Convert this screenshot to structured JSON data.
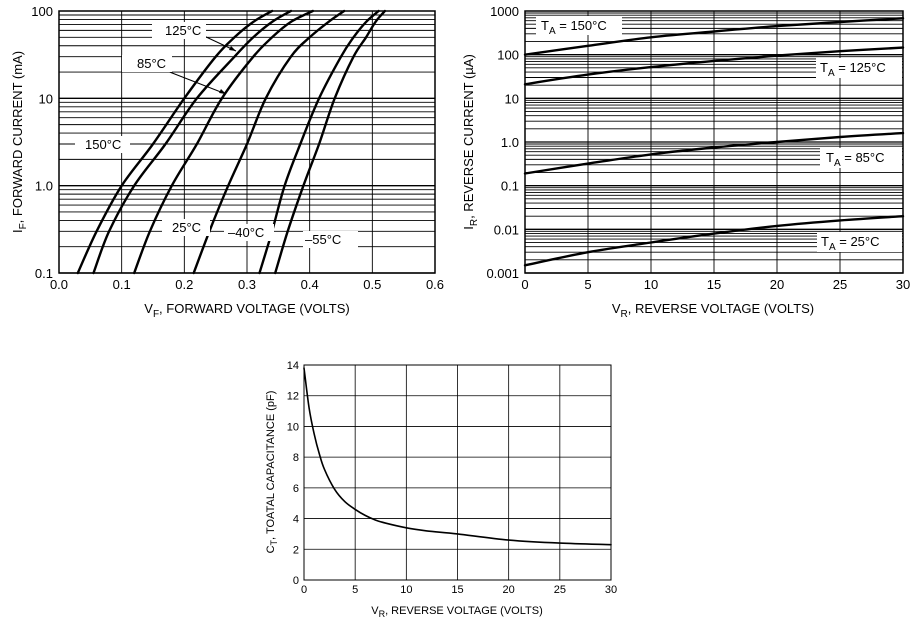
{
  "chart_data": [
    {
      "type": "line",
      "id": "forward",
      "xlabel": "V_F, FORWARD VOLTAGE (VOLTS)",
      "xlabel_main": "V",
      "xlabel_sub": "F",
      "xlabel_rest": ", FORWARD VOLTAGE (VOLTS)",
      "ylabel": "I_F, FORWARD CURRENT (mA)",
      "ylabel_main": "I",
      "ylabel_sub": "F",
      "ylabel_rest": ", FORWARD CURRENT (mA)",
      "xlim": [
        0,
        0.6
      ],
      "ylim": [
        0.1,
        100
      ],
      "y_scale": "log",
      "grid": true,
      "x_ticks": [
        "0.0",
        "0.1",
        "0.2",
        "0.3",
        "0.4",
        "0.5",
        "0.6"
      ],
      "y_ticks": [
        "0.1",
        "1.0",
        "10",
        "100"
      ],
      "series": [
        {
          "name": "150°C",
          "x": [
            0.03,
            0.06,
            0.1,
            0.15,
            0.2,
            0.25,
            0.28,
            0.31,
            0.34
          ],
          "y": [
            0.1,
            0.3,
            1,
            3,
            10,
            30,
            50,
            75,
            100
          ]
        },
        {
          "name": "125°C",
          "x": [
            0.055,
            0.08,
            0.12,
            0.17,
            0.22,
            0.28,
            0.31,
            0.34,
            0.37
          ],
          "y": [
            0.1,
            0.3,
            1,
            3,
            10,
            30,
            50,
            75,
            100
          ]
        },
        {
          "name": "85°C",
          "x": [
            0.12,
            0.145,
            0.18,
            0.22,
            0.26,
            0.31,
            0.34,
            0.37,
            0.405
          ],
          "y": [
            0.1,
            0.3,
            1,
            3,
            10,
            30,
            50,
            75,
            100
          ]
        },
        {
          "name": "25°C",
          "x": [
            0.215,
            0.24,
            0.27,
            0.3,
            0.33,
            0.37,
            0.4,
            0.43,
            0.455
          ],
          "y": [
            0.1,
            0.3,
            1,
            3,
            10,
            30,
            50,
            75,
            100
          ]
        },
        {
          "name": "-40°C",
          "x": [
            0.32,
            0.34,
            0.36,
            0.385,
            0.415,
            0.45,
            0.47,
            0.49,
            0.51
          ],
          "y": [
            0.1,
            0.3,
            1,
            3,
            10,
            30,
            50,
            75,
            100
          ]
        },
        {
          "name": "-55°C",
          "x": [
            0.345,
            0.365,
            0.39,
            0.415,
            0.44,
            0.47,
            0.49,
            0.505,
            0.52
          ],
          "y": [
            0.1,
            0.3,
            1,
            3,
            10,
            30,
            50,
            75,
            100
          ]
        }
      ],
      "labels": {
        "t150": "150°C",
        "t125": "125°C",
        "t85": "85°C",
        "t25": "25°C",
        "tm40": "–40°C",
        "tm55": "–55°C"
      }
    },
    {
      "type": "line",
      "id": "reverse",
      "xlabel": "V_R, REVERSE VOLTAGE (VOLTS)",
      "xlabel_main": "V",
      "xlabel_sub": "R",
      "xlabel_rest": ", REVERSE VOLTAGE (VOLTS)",
      "ylabel": "I_R, REVERSE CURRENT (µA)",
      "ylabel_main": "I",
      "ylabel_sub": "R",
      "ylabel_rest": ", REVERSE CURRENT (µA)",
      "xlim": [
        0,
        30
      ],
      "ylim": [
        0.001,
        1000
      ],
      "y_scale": "log",
      "grid": true,
      "x_ticks": [
        "0",
        "5",
        "10",
        "15",
        "20",
        "25",
        "30"
      ],
      "y_ticks": [
        "0.001",
        "0.01",
        "0.1",
        "1.0",
        "10",
        "100",
        "1000"
      ],
      "series": [
        {
          "name": "T_A = 150°C",
          "x": [
            0,
            5,
            10,
            15,
            20,
            25,
            30
          ],
          "y": [
            100,
            160,
            250,
            340,
            450,
            560,
            680
          ]
        },
        {
          "name": "T_A = 125°C",
          "x": [
            0,
            5,
            10,
            15,
            20,
            25,
            30
          ],
          "y": [
            21,
            35,
            52,
            72,
            95,
            120,
            145
          ]
        },
        {
          "name": "T_A = 85°C",
          "x": [
            0,
            5,
            10,
            15,
            20,
            25,
            30
          ],
          "y": [
            0.19,
            0.32,
            0.52,
            0.75,
            1.0,
            1.3,
            1.6
          ]
        },
        {
          "name": "T_A = 25°C",
          "x": [
            0,
            5,
            10,
            15,
            20,
            25,
            30
          ],
          "y": [
            0.0015,
            0.003,
            0.005,
            0.008,
            0.012,
            0.016,
            0.02
          ]
        }
      ],
      "labels": [
        {
          "main": "T",
          "sub": "A",
          "rest": " = 150°C"
        },
        {
          "main": "T",
          "sub": "A",
          "rest": " = 125°C"
        },
        {
          "main": "T",
          "sub": "A",
          "rest": " = 85°C"
        },
        {
          "main": "T",
          "sub": "A",
          "rest": " = 25°C"
        }
      ]
    },
    {
      "type": "line",
      "id": "capacitance",
      "xlabel": "V_R, REVERSE VOLTAGE (VOLTS)",
      "xlabel_main": "V",
      "xlabel_sub": "R",
      "xlabel_rest": ", REVERSE VOLTAGE (VOLTS)",
      "ylabel": "C_T, TOATAL CAPACITANCE (pF)",
      "ylabel_main": "C",
      "ylabel_sub": "T",
      "ylabel_rest": ", TOATAL CAPACITANCE (pF)",
      "xlim": [
        0,
        30
      ],
      "ylim": [
        0,
        14
      ],
      "y_scale": "linear",
      "grid": true,
      "x_ticks": [
        "0",
        "5",
        "10",
        "15",
        "20",
        "25",
        "30"
      ],
      "y_ticks": [
        "0",
        "2",
        "4",
        "6",
        "8",
        "10",
        "12",
        "14"
      ],
      "series": [
        {
          "name": "",
          "x": [
            0,
            0.5,
            1,
            1.5,
            2,
            3,
            4,
            5,
            6,
            7,
            8,
            10,
            12,
            15,
            20,
            25,
            30
          ],
          "y": [
            13.8,
            11.2,
            9.5,
            8.2,
            7.2,
            5.9,
            5.1,
            4.6,
            4.2,
            3.9,
            3.7,
            3.4,
            3.2,
            3.0,
            2.6,
            2.4,
            2.3
          ]
        }
      ]
    }
  ]
}
